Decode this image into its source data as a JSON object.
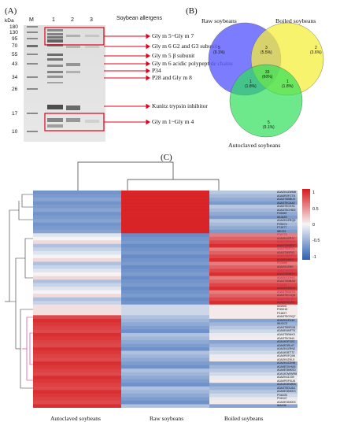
{
  "panel_a": {
    "label": "(A)",
    "kda_unit": "kDa",
    "lane_labels": [
      "M",
      "1",
      "2",
      "3"
    ],
    "header": "Soybean allergens",
    "markers": [
      "180",
      "130",
      "95",
      "70",
      "55",
      "43",
      "34",
      "26",
      "17",
      "10"
    ],
    "allergens": [
      "Gly m 5~Gly m 7",
      "Gly m 6 G2 and G3 subunit",
      "Gly m 5 β subunit",
      "Gly m 6 acidic polypeptide chains",
      "P34",
      "P28 and Gly m 8",
      "Kunitz trypsin inhibitor",
      "Gly m 1~Gly m 4"
    ]
  },
  "panel_b": {
    "label": "(B)",
    "circles": [
      "Raw soybeans",
      "Boiled soybeans",
      "Autoclaved soybeans"
    ],
    "regions": [
      {
        "count": "5",
        "pct": "(9.1%)"
      },
      {
        "count": "3",
        "pct": "(5.5%)"
      },
      {
        "count": "2",
        "pct": "(3.6%)"
      },
      {
        "count": "33",
        "pct": "(60%)"
      },
      {
        "count": "1",
        "pct": "(1.8%)"
      },
      {
        "count": "1",
        "pct": "(1.8%)"
      },
      {
        "count": "5",
        "pct": "(9.1%)"
      }
    ]
  },
  "panel_c": {
    "label": "(C)",
    "columns": [
      "Autoclaved soybeans",
      "Raw soybeans",
      "Boiled soybeans"
    ],
    "scale_ticks": [
      "1",
      "0.5",
      "0",
      "-0.5",
      "-1"
    ],
    "rows": [
      "A0A2K4ZMM8",
      "A0A0R0FCT6",
      "A0A3T5BBU0",
      "A0A3T5CA40",
      "A0A0T5CKS1",
      "A0A3T5CHD3",
      "P26987",
      "I6UAZ5",
      "A0A2K4ZRQ5",
      "P25974",
      "F7J077",
      "I6EJ31",
      "P04776",
      "A0A2K4ZPJ1",
      "A0A3T5BVD6",
      "A0A3T5BER7",
      "A0A3T5BT21",
      "A0A3T5BF93",
      "A0A3T5BFF2",
      "A0A0R0HI04",
      "P02858",
      "A0A2K4ZN0",
      "A0A3T5BT57",
      "A0A3T5BBT9",
      "A0A2K4ZH43",
      "A0A3T5BBA8",
      "P11828",
      "A0A0R0EB29",
      "A0A3T5BUT8",
      "A0A3T5C1Q6",
      "A0A3T5BT51",
      "A0A2K4ZLR1",
      "I6WW5",
      "P0D015",
      "P11827",
      "A0A3T5CDQ7",
      "A0A2K4ZV44",
      "I6UCC3",
      "A0A3T5BFG8",
      "A0A0E4MFT0",
      "A0A3T5BNK3",
      "A0A3T5C644",
      "A0A1K0F3X3",
      "A0A0E3RL67",
      "A0A2K4ZRN2",
      "A0A1K0ET72",
      "A0A0R0FQ06",
      "A0A2K4ZKL5",
      "A0A2K4ZDH6",
      "A0A0E3XHU5",
      "A0A0E3MKS0",
      "A0A1K0WWR8",
      "A0A2K4ZJ39",
      "A0A0R0F0U8",
      "A0A1K0EMK8",
      "A0A3T5DUA1",
      "A0A0E3MKK3",
      "P04405",
      "P04347",
      "A0A0E3MKK5",
      "I6A436"
    ]
  }
}
